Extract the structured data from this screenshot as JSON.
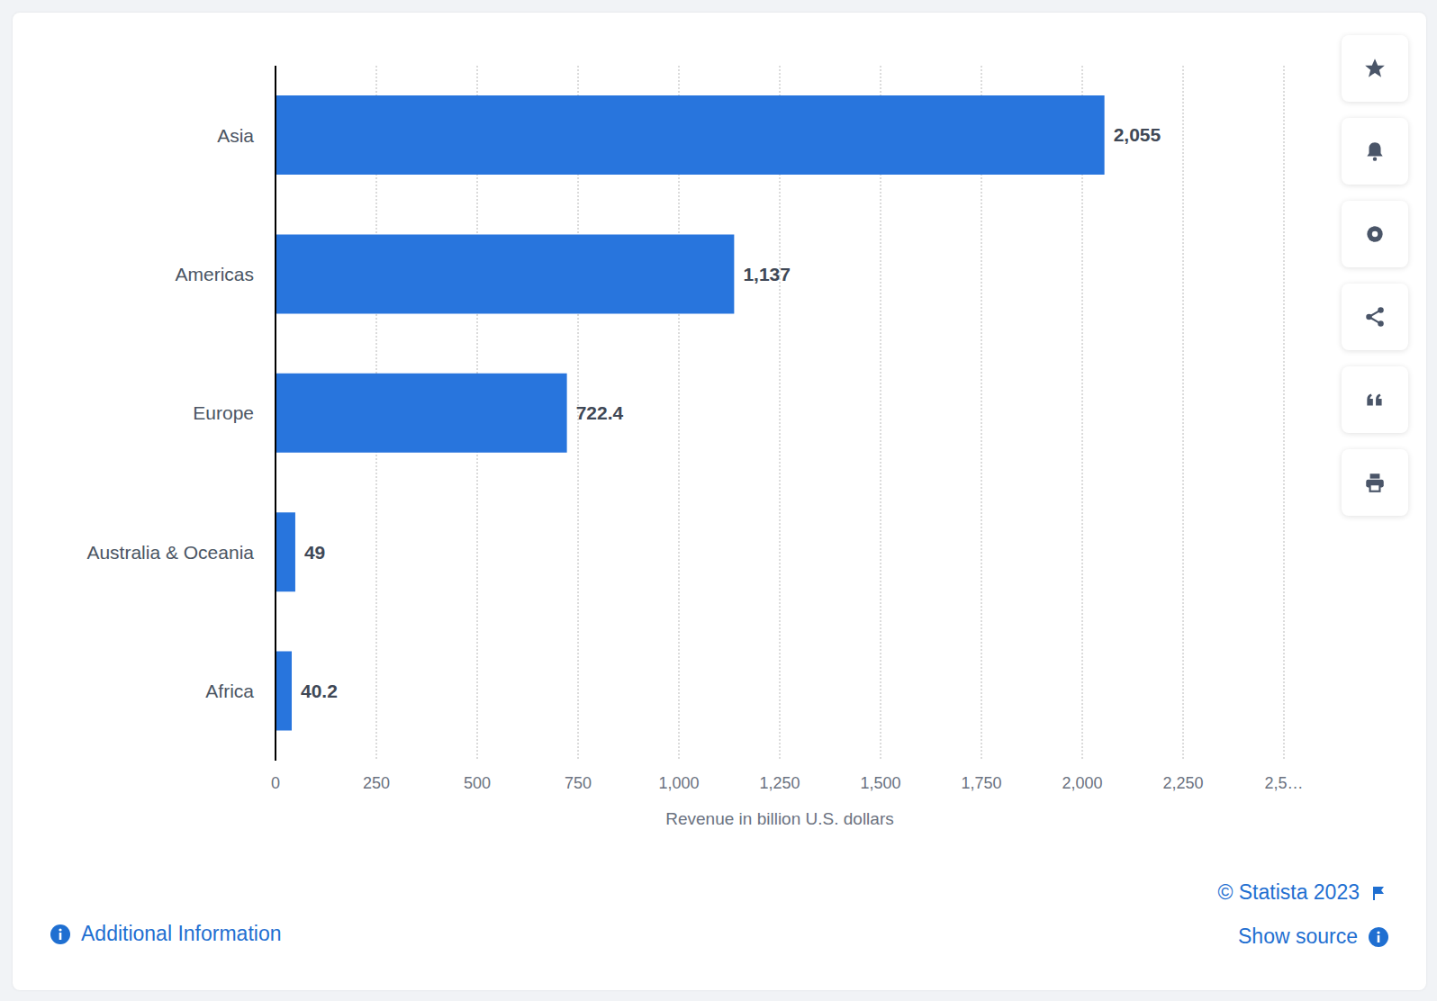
{
  "chart_data": {
    "type": "bar",
    "orientation": "horizontal",
    "categories": [
      "Asia",
      "Americas",
      "Europe",
      "Australia & Oceania",
      "Africa"
    ],
    "values": [
      2055,
      1137,
      722.4,
      49,
      40.2
    ],
    "value_labels": [
      "2,055",
      "1,137",
      "722.4",
      "49",
      "40.2"
    ],
    "data_labels": true,
    "color": "#2875dd",
    "x_label": "Revenue in billion U.S. dollars",
    "xlim": [
      0,
      2500
    ],
    "xticks": [
      0,
      250,
      500,
      750,
      {
        "value": 1000,
        "label": "1,000"
      },
      {
        "value": 1250,
        "label": "1,250"
      },
      {
        "value": 1500,
        "label": "1,500"
      },
      {
        "value": 1750,
        "label": "1,750"
      },
      {
        "value": 2000,
        "label": "2,000"
      },
      {
        "value": 2250,
        "label": "2,250"
      },
      {
        "value": 2500,
        "label": "2,5…"
      }
    ],
    "grid": true
  },
  "source": "© Statista 2023",
  "links": [
    "Additional Information",
    "Show source"
  ]
}
